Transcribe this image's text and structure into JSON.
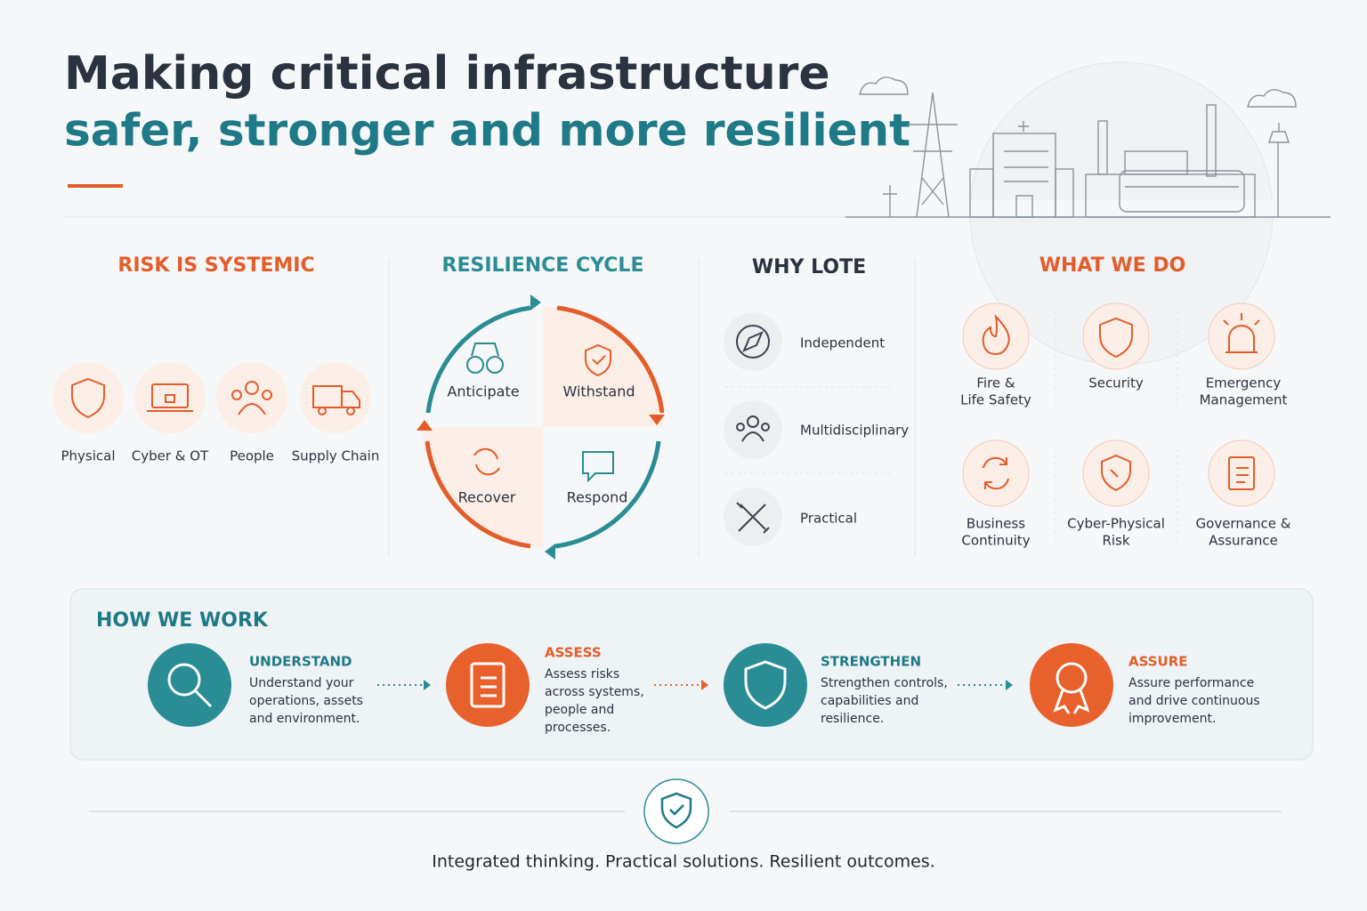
{
  "header": {
    "title_line1": "Making critical infrastructure",
    "title_line2": "safer, stronger and more resilient"
  },
  "risk": {
    "title": "RISK IS SYSTEMIC",
    "items": [
      "Physical",
      "Cyber & OT",
      "People",
      "Supply Chain"
    ]
  },
  "resilience": {
    "title": "RESILIENCE CYCLE",
    "quadrants": [
      "Anticipate",
      "Withstand",
      "Recover",
      "Respond"
    ]
  },
  "why": {
    "title": "WHY LOTE",
    "items": [
      "Independent",
      "Multidisciplinary",
      "Practical"
    ]
  },
  "what": {
    "title": "WHAT WE DO",
    "items": [
      [
        "Fire &",
        "Life Safety"
      ],
      [
        "Security"
      ],
      [
        "Emergency",
        "Management"
      ],
      [
        "Business",
        "Continuity"
      ],
      [
        "Cyber-Physical",
        "Risk"
      ],
      [
        "Governance &",
        "Assurance"
      ]
    ]
  },
  "how": {
    "title": "HOW WE WORK",
    "steps": [
      {
        "title": "UNDERSTAND",
        "description": [
          "Understand your",
          "operations, assets",
          "and environment."
        ]
      },
      {
        "title": "ASSESS",
        "description": [
          "Assess risks",
          "across systems,",
          "people and",
          "processes."
        ]
      },
      {
        "title": "STRENGTHEN",
        "description": [
          "Strengthen controls,",
          "capabilities and",
          "resilience."
        ]
      },
      {
        "title": "ASSURE",
        "description": [
          "Assure performance",
          "and drive continuous",
          "improvement."
        ]
      }
    ]
  },
  "footer": {
    "tagline": "Integrated thinking. Practical solutions. Resilient outcomes."
  }
}
